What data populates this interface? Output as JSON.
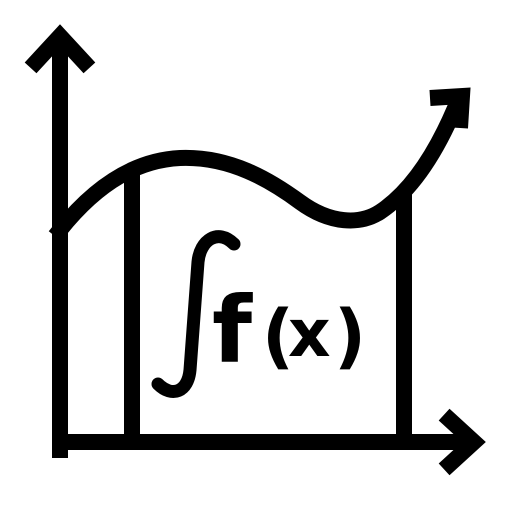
{
  "icon": {
    "name": "integral-area-under-curve-icon",
    "stroke_color": "#000000",
    "background_color": "#ffffff",
    "formula": {
      "f": "f",
      "paren_open": "(",
      "x": "x",
      "paren_close": ")"
    }
  }
}
